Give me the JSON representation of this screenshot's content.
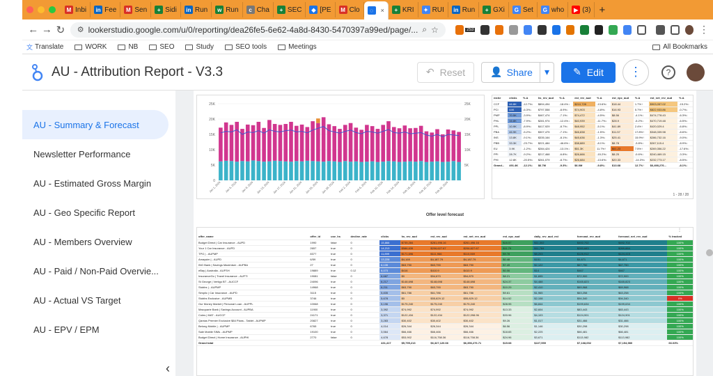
{
  "browser": {
    "tabs": [
      {
        "label": "Inbi",
        "color": "#d93025",
        "glyph": "M"
      },
      {
        "label": "Fee",
        "color": "#0a66c2",
        "glyph": "in"
      },
      {
        "label": "Sen",
        "color": "#d93025",
        "glyph": "M"
      },
      {
        "label": "Sidi",
        "color": "#188038",
        "glyph": "+"
      },
      {
        "label": "Run",
        "color": "#0a66c2",
        "glyph": "in"
      },
      {
        "label": "Run",
        "color": "#188038",
        "glyph": "w"
      },
      {
        "label": "Cha",
        "color": "#777777",
        "glyph": "c"
      },
      {
        "label": "SEC",
        "color": "#188038",
        "glyph": "+"
      },
      {
        "label": "[PE",
        "color": "#1a73e8",
        "glyph": "◆"
      },
      {
        "label": "Clo",
        "color": "#d93025",
        "glyph": "M"
      },
      {
        "label": "",
        "color": "#1a73e8",
        "glyph": "◌",
        "active": true
      },
      {
        "label": "KRI",
        "color": "#188038",
        "glyph": "+"
      },
      {
        "label": "RUI",
        "color": "#4285f4",
        "glyph": "✦"
      },
      {
        "label": "Run",
        "color": "#0a66c2",
        "glyph": "in"
      },
      {
        "label": "GXi",
        "color": "#188038",
        "glyph": "+"
      },
      {
        "label": "Set",
        "color": "#4285f4",
        "glyph": "G"
      },
      {
        "label": "who",
        "color": "#4285f4",
        "glyph": "G"
      },
      {
        "label": "(3)",
        "color": "#ff0000",
        "glyph": "▶"
      }
    ],
    "new_tab": "+",
    "url": "lookerstudio.google.com/u/0/reporting/dea26fe5-6e62-4a8d-8430-5470397a99ed/page/...",
    "bookmarks": [
      "Translate",
      "WORK",
      "NB",
      "SEO",
      "Study",
      "SEO tools",
      "Meetings"
    ],
    "all_bookmarks": "All Bookmarks",
    "extension_badge": "253"
  },
  "report": {
    "title": "AU - Attribution Report - V3.3",
    "reset_label": "Reset",
    "share_label": "Share",
    "edit_label": "Edit"
  },
  "nav": [
    {
      "label": "AU - Summary & Forecast",
      "active": true
    },
    {
      "label": "Newsletter Performance"
    },
    {
      "label": "AU - Estimated Gross Margin"
    },
    {
      "label": "AU - Geo Specific Report"
    },
    {
      "label": "AU - Members Overview"
    },
    {
      "label": "AU - Paid / Non-Paid Overvie..."
    },
    {
      "label": "AU - Actual VS Target"
    },
    {
      "label": "AU - EPV / EPM"
    }
  ],
  "chart_data": {
    "type": "bar",
    "stacked": true,
    "title": "",
    "y_ticks": [
      "25K",
      "20K",
      "15K",
      "10K",
      "5K",
      "0"
    ],
    "y2_ticks": [
      "25K",
      "20K",
      "15K",
      "10K",
      "5K"
    ],
    "ylim": [
      0,
      25000
    ],
    "series": [
      {
        "color": "#3bb3c9",
        "values": [
          6200,
          6400,
          6300,
          6100,
          6300,
          6200,
          6500,
          6300,
          6100,
          6200,
          6400,
          6300,
          6200,
          6100,
          6300,
          6200,
          6400,
          6300,
          6200,
          6100,
          6300,
          6200,
          6000,
          6300,
          6100,
          6200,
          6000,
          6100,
          6200,
          6000,
          6100,
          6300,
          6200,
          6000,
          6100,
          6200,
          6100,
          6300,
          6000,
          6100,
          6200,
          6000,
          6100,
          6300,
          6000
        ]
      },
      {
        "color": "#d1368f",
        "values": [
          11000,
          12500,
          11800,
          13000,
          10500,
          12000,
          11500,
          12800,
          11000,
          13500,
          12000,
          11800,
          12200,
          13000,
          11500,
          12000,
          11000,
          13000,
          12500,
          14500,
          12000,
          11500,
          10800,
          11800,
          12600,
          11000,
          10500,
          12000,
          11500,
          10800,
          12000,
          13000,
          11200,
          11000,
          11800,
          10800,
          11000,
          11500,
          10000,
          9500,
          10500,
          9000,
          10500,
          10000,
          9800
        ]
      },
      {
        "color": "#e8913a",
        "values": [
          0,
          0,
          0,
          0,
          0,
          0,
          0,
          0,
          0,
          0,
          0,
          0,
          0,
          0,
          0,
          0,
          0,
          0,
          1500,
          0,
          0,
          0,
          0,
          0,
          0,
          0,
          0,
          0,
          0,
          0,
          0,
          0,
          0,
          0,
          0,
          0,
          0,
          0,
          0,
          0,
          0,
          0,
          0,
          0,
          0
        ]
      }
    ],
    "line": {
      "color": "#4455cc",
      "values": [
        15500,
        16000,
        15800,
        16500,
        15000,
        15800,
        15600,
        16200,
        15400,
        16500,
        16000,
        15800,
        16200,
        16400,
        15800,
        16000,
        15500,
        16400,
        17000,
        17600,
        16200,
        15800,
        15400,
        16000,
        16400,
        15600,
        15200,
        16000,
        15800,
        15400,
        16000,
        16600,
        15600,
        15400,
        15800,
        15200,
        15400,
        15600,
        14800,
        14400,
        15000,
        14200,
        15000,
        14800,
        14600
      ]
    },
    "x_labels": [
      "Jan 1, 2024",
      "Jan 5, 2024",
      "Jan 9, 2024",
      "Jan 13, 2024",
      "Jan 17, 2024",
      "Jan 21, 2024",
      "Jan 25, 2024",
      "Jan 29, 2024",
      "Feb 2, 2024",
      "Feb 6, 2024",
      "Feb 10, 2024",
      "Feb 14, 2024",
      "Feb 18, 2024",
      "Feb 22, 2024",
      "Feb 26, 2024"
    ]
  },
  "niche_table": {
    "headers": [
      "niche",
      "clicks",
      "% Δ",
      "hs_rev_aud",
      "% Δ",
      "est_rev_aud",
      "% Δ",
      "est_epc_aud",
      "% Δ",
      "est_net_rev_aud",
      "% Δ"
    ],
    "rows": [
      [
        "CCF",
        "46.8K",
        "-12.7%↓",
        "$894,494",
        "-18.4%↓",
        "$210,728",
        "-13.6%↓",
        "$18.44",
        "1.7%↑",
        "$903,057.02",
        "-15.2%↓"
      ],
      [
        "PCI",
        "44K",
        "-6.3%↓",
        "$797,558",
        "-8.9%↓",
        "$74,903",
        "-4.8%↓",
        "$16.93",
        "5.7%↑",
        "$822,933.86",
        "-0.7%↓"
      ],
      [
        "PMP",
        "70.5K",
        "-3.9%↓",
        "$467,474",
        "-7.1%↓",
        "$74,472",
        "-4.5%↓",
        "$8.56",
        "-4.1%↓",
        "$474,778.43",
        "-6.3%↓"
      ],
      [
        "PHL",
        "16.8K",
        "-7.9%↓",
        "$281,974",
        "-12.4%↓",
        "$40,939",
        "-11.7%↓",
        "$28.9",
        "-5.2%↓",
        "$470,719.48",
        "-6.5%↓"
      ],
      [
        "PPL",
        "10.9K",
        "-8.9%↓",
        "$417,929",
        "-8.7%↓",
        "$48,952",
        "-5.1%↓",
        "$41.89",
        "2.4%↑",
        "$420,029.4",
        "-6.8%↓"
      ],
      [
        "PBA",
        "46.9K",
        "-5.2%↓",
        "$307,475",
        "-7.1%↓",
        "$46,838",
        "-1.5%↓",
        "$11.57",
        "17.8%↑",
        "$348,339.98",
        "-8.6%↓"
      ],
      [
        "INS",
        "13.8K",
        "-9.1%↓",
        "$335,164",
        "-8.1%↓",
        "$45,636",
        "-1.3%↓",
        "$25.41",
        "15.9%↑",
        "$286,732.16",
        "-9.0%↓"
      ],
      [
        "PBB",
        "33.3K",
        "-23.7%↓",
        "$221,484",
        "-46.6%↓",
        "$38,889",
        "-8.1%↓",
        "$8.78",
        "-3.8%↓",
        "$267,115.4",
        "-8.9%↓"
      ],
      [
        "EU",
        "3.9K",
        "-1.2%↓",
        "$284,424",
        "-13.1%↓",
        "$51.3K",
        "11.7%↑",
        "$61.23",
        "7.5%↑",
        "$269,356.22",
        "-17.6%↓"
      ],
      [
        "PPI",
        "28.7K",
        "-9.2%↓",
        "$217,468",
        "-6.8%↓",
        "$26,666",
        "-15.2%↓",
        "$8.25",
        "-0.6%↓",
        "$240,469.15",
        "-3.3%↓"
      ],
      [
        "PHI",
        "12.8K",
        "-20.5%↓",
        "$261,079",
        "-8.7%↓",
        "$26,684",
        "-13.6%↓",
        "$20.33",
        "-14.3%↓",
        "$232,773.17",
        "-8.5%↓"
      ],
      [
        "Grand...",
        "491.4K",
        "-12.1%↓",
        "$6.7M",
        "-9.3%↓",
        "$6.0M",
        "-9.8%↓",
        "$13.68",
        "12.7%↑",
        "$6,498,276...",
        "-8.1%↓"
      ]
    ],
    "pager": "1 - 28 / 28"
  },
  "offer_table": {
    "title": "Offer level forecast",
    "headers": [
      "offer_name",
      "offer_id",
      "use_hs",
      "decline_rate",
      "clicks",
      "hs_rev_aud",
      "est_rev_aud",
      "est_net_rev_aud",
      "est_epc_aud",
      "daily_rev_aud_est",
      "forecast_rev_aud",
      "forecast_net_rev_aud",
      "% tracked"
    ],
    "rows": [
      [
        "Budget Direct | Car Insurance - AUPD",
        "1990",
        "false",
        "0",
        "15,866",
        "$735,284",
        "$261,496.16",
        "$261,496.16",
        "$16.57",
        "$11,302",
        "$492,702",
        "$492,702",
        "100%"
      ],
      [
        "Your 1 Car Insurance - AUPD",
        "2657",
        "true",
        "0",
        "14,213",
        "$586,639",
        "$206,627.67",
        "$206,627.67",
        "$11.79",
        "$11,784",
        "$283,683",
        "$269,884",
        "100%"
      ],
      [
        "TPG | - AUPMP",
        "8377",
        "true",
        "0",
        "11,899",
        "$171,696",
        "$111,966",
        "$110,069",
        "$9.78",
        "$8,203",
        "$126,912",
        "$124,415",
        "100%"
      ],
      [
        "Amaysim | - AUPD",
        "6/59",
        "true",
        "0",
        "13,228",
        "$4,169",
        "$4,187.79",
        "$4,187.79",
        "$0.48",
        "$151",
        "$4,671",
        "$4,671",
        "100%"
      ],
      [
        "ING Bank | Savings Maximiser - AUPBA",
        "27",
        "true",
        "0",
        "6,135",
        "$63,790",
        "$63,790",
        "$63,790",
        "$7.49",
        "$2,122",
        "$67,750",
        "$67,750",
        "100%"
      ],
      [
        "eBay | Australia - AUFSH",
        "19889",
        "true",
        "0.12",
        "6,073",
        "$416",
        "$410.9",
        "$410.9",
        "$0.06",
        "$14",
        "$467",
        "$467",
        "100%"
      ],
      [
        "InsuranceGo | Travel Insurance - AUFTI",
        "19081",
        "false",
        "0",
        "6,687",
        "$0",
        "$54,870",
        "$54,870",
        "$8.21",
        "$1,695",
        "$72,900",
        "$72,900",
        "100%"
      ],
      [
        "St George | Vertigo BT - AUCCF",
        "24096",
        "true",
        "0",
        "6,217",
        "$148,698",
        "$148,698",
        "$148,698",
        "$24.37",
        "$4,488",
        "$165,823",
        "$165,823",
        "100%"
      ],
      [
        "Stubbs | - AUPMP",
        "14968",
        "true",
        "0",
        "6,211",
        "$63,790",
        "$63,790",
        "$63,790",
        "$10.29",
        "$2,410",
        "$69,968",
        "$69,968",
        "100%"
      ],
      [
        "Simplic | Car Insurance - AUPD",
        "3115",
        "true",
        "0",
        "5,835",
        "$61,786",
        "$61,786",
        "$61,786",
        "$9.61",
        "$1,965",
        "$63,258",
        "$63,258",
        "100%"
      ],
      [
        "Stubbs Exclusive - AUPMB",
        "3746",
        "true",
        "0",
        "5,678",
        "$0",
        "$55,829.12",
        "$55,829.12",
        "$14.52",
        "$2,108",
        "$94,340",
        "$94,340",
        "0%"
      ],
      [
        "Our Money Market | Personal Loan - AUPPL",
        "10068",
        "true",
        "0",
        "5,196",
        "$175,240",
        "$175,240",
        "$175,240",
        "$28.95",
        "$6,844",
        "$199,634",
        "$199,634",
        "100%"
      ],
      [
        "Macquarie Bank | Savings Account - AUPBA",
        "11900",
        "true",
        "0",
        "3,392",
        "$74,992",
        "$74,992",
        "$74,992",
        "$13.33",
        "$2,604",
        "$83,443",
        "$83,443",
        "100%"
      ],
      [
        "Coles | MAT - AUCCF",
        "24171",
        "true",
        "0",
        "3,371",
        "$122,434",
        "$122,434",
        "$122,098.96",
        "$33.96",
        "$4,103",
        "$124,901",
        "$124,901",
        "100%"
      ],
      [
        "Qantas Premier Exclusive $84 Plans - Tablet - AUPMP",
        "20827",
        "true",
        "0",
        "3,283",
        "$30,402",
        "$30,402",
        "$30,402",
        "$9.26",
        "$1,017",
        "$31,466",
        "$31,466",
        "100%"
      ],
      [
        "Belong Mobile | - AUPMP",
        "6765",
        "true",
        "0",
        "4,014",
        "$26,344",
        "$26,344",
        "$26,344",
        "$6.56",
        "$1,146",
        "$30,298",
        "$30,298",
        "100%"
      ],
      [
        "Sale Mobile SIMs - AUPMP",
        "19100",
        "true",
        "0",
        "3,564",
        "$66,466",
        "$66,466",
        "$66,466",
        "$18.65",
        "$2,225",
        "$66,481",
        "$66,481",
        "100%"
      ],
      [
        "Budget Direct | Home Insurance - AUPHI",
        "2770",
        "false",
        "0",
        "4,678",
        "$53,902",
        "$116,758.36",
        "$116,758.36",
        "$24.96",
        "$3,671",
        "$113,982",
        "$113,982",
        "100%"
      ]
    ],
    "grand_total": [
      "Grand total",
      "",
      "",
      "",
      "431,417",
      "$5,795,213",
      "$6,327,120.66",
      "$6,356,276.71",
      "$15.08",
      "$227,559",
      "$7,168,652",
      "$7,154,980",
      "66.03%"
    ]
  }
}
